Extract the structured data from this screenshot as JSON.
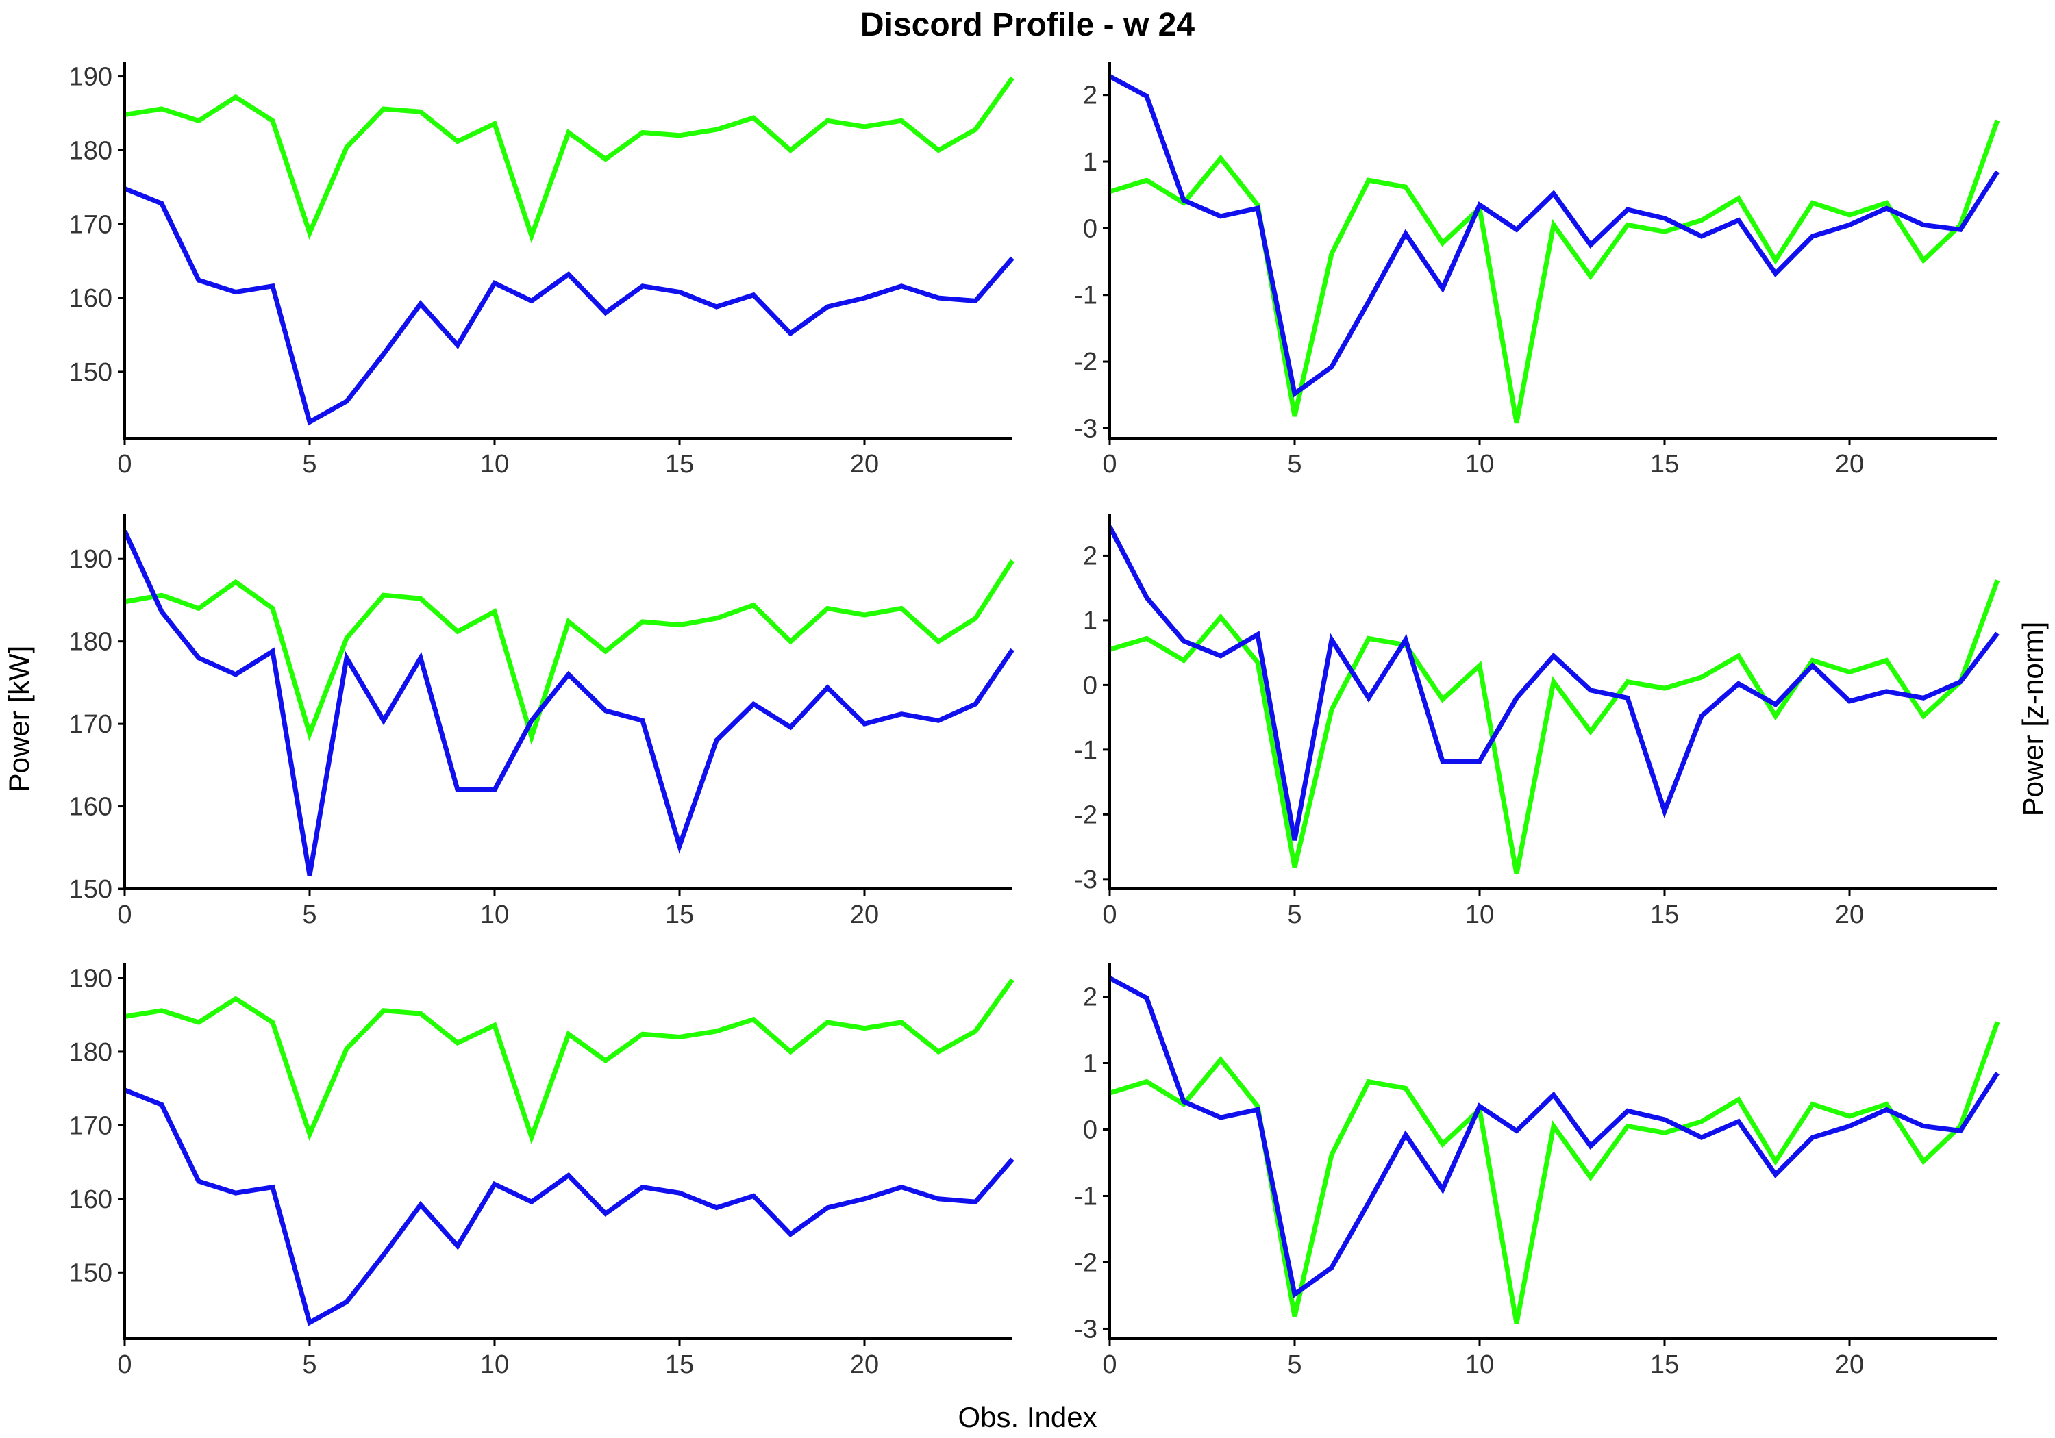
{
  "figure": {
    "title": "Discord Profile - w 24",
    "xlabel": "Obs. Index",
    "ylabel_left": "Power [kW]",
    "ylabel_right": "Power [z-norm]"
  },
  "colors": {
    "green": "#22ff00",
    "blue": "#1010ee"
  },
  "chart_data": [
    {
      "type": "line",
      "panel": "row1-left",
      "x": [
        0,
        1,
        2,
        3,
        4,
        5,
        6,
        7,
        8,
        9,
        10,
        11,
        12,
        13,
        14,
        15,
        16,
        17,
        18,
        19,
        20,
        21,
        22,
        23,
        24
      ],
      "xlim": [
        0,
        24
      ],
      "xticks": [
        0,
        5,
        10,
        15,
        20
      ],
      "ylim": [
        141,
        192
      ],
      "yticks": [
        150,
        160,
        170,
        180,
        190
      ],
      "series": [
        {
          "color": "#22ff00",
          "values": [
            184.8,
            185.6,
            184.0,
            187.2,
            184.0,
            168.8,
            180.4,
            185.6,
            185.2,
            181.2,
            183.6,
            168.4,
            182.4,
            178.8,
            182.4,
            182.0,
            182.8,
            184.4,
            180.0,
            184.0,
            183.2,
            184.0,
            180.0,
            182.8,
            189.8
          ]
        },
        {
          "color": "#1010ee",
          "values": [
            174.8,
            172.8,
            162.4,
            160.8,
            161.6,
            143.2,
            146.0,
            152.4,
            159.2,
            153.6,
            162.0,
            159.6,
            163.2,
            158.0,
            161.6,
            160.8,
            158.8,
            160.4,
            155.2,
            158.8,
            160.0,
            161.6,
            160.0,
            159.6,
            165.4
          ]
        }
      ]
    },
    {
      "type": "line",
      "panel": "row1-right",
      "x": [
        0,
        1,
        2,
        3,
        4,
        5,
        6,
        7,
        8,
        9,
        10,
        11,
        12,
        13,
        14,
        15,
        16,
        17,
        18,
        19,
        20,
        21,
        22,
        23,
        24
      ],
      "xlim": [
        0,
        24
      ],
      "xticks": [
        0,
        5,
        10,
        15,
        20
      ],
      "ylim": [
        -3.15,
        2.5
      ],
      "yticks": [
        -3,
        -2,
        -1,
        0,
        1,
        2
      ],
      "series": [
        {
          "color": "#22ff00",
          "values": [
            0.55,
            0.72,
            0.38,
            1.05,
            0.35,
            -2.82,
            -0.38,
            0.72,
            0.62,
            -0.22,
            0.3,
            -2.92,
            0.05,
            -0.72,
            0.05,
            -0.05,
            0.12,
            0.45,
            -0.48,
            0.38,
            0.2,
            0.38,
            -0.48,
            0.05,
            1.62
          ]
        },
        {
          "color": "#1010ee",
          "values": [
            2.28,
            1.98,
            0.42,
            0.18,
            0.3,
            -2.48,
            -2.08,
            -1.1,
            -0.08,
            -0.9,
            0.35,
            -0.02,
            0.52,
            -0.25,
            0.28,
            0.15,
            -0.12,
            0.12,
            -0.68,
            -0.12,
            0.05,
            0.3,
            0.05,
            -0.02,
            0.85
          ]
        }
      ]
    },
    {
      "type": "line",
      "panel": "row2-left",
      "x": [
        0,
        1,
        2,
        3,
        4,
        5,
        6,
        7,
        8,
        9,
        10,
        11,
        12,
        13,
        14,
        15,
        16,
        17,
        18,
        19,
        20,
        21,
        22,
        23,
        24
      ],
      "xlim": [
        0,
        24
      ],
      "xticks": [
        0,
        5,
        10,
        15,
        20
      ],
      "ylim": [
        150,
        195.5
      ],
      "yticks": [
        150,
        160,
        170,
        180,
        190
      ],
      "series": [
        {
          "color": "#22ff00",
          "values": [
            184.8,
            185.6,
            184.0,
            187.2,
            184.0,
            168.8,
            180.4,
            185.6,
            185.2,
            181.2,
            183.6,
            168.4,
            182.4,
            178.8,
            182.4,
            182.0,
            182.8,
            184.4,
            180.0,
            184.0,
            183.2,
            184.0,
            180.0,
            182.8,
            189.8
          ]
        },
        {
          "color": "#1010ee",
          "values": [
            193.4,
            183.6,
            178.0,
            176.0,
            178.8,
            151.6,
            178.0,
            170.4,
            178.0,
            162.0,
            162.0,
            170.4,
            176.0,
            171.6,
            170.4,
            155.2,
            168.0,
            172.4,
            169.6,
            174.4,
            170.0,
            171.2,
            170.4,
            172.4,
            179.0
          ]
        }
      ]
    },
    {
      "type": "line",
      "panel": "row2-right",
      "x": [
        0,
        1,
        2,
        3,
        4,
        5,
        6,
        7,
        8,
        9,
        10,
        11,
        12,
        13,
        14,
        15,
        16,
        17,
        18,
        19,
        20,
        21,
        22,
        23,
        24
      ],
      "xlim": [
        0,
        24
      ],
      "xticks": [
        0,
        5,
        10,
        15,
        20
      ],
      "ylim": [
        -3.15,
        2.65
      ],
      "yticks": [
        -3,
        -2,
        -1,
        0,
        1,
        2
      ],
      "series": [
        {
          "color": "#22ff00",
          "values": [
            0.55,
            0.72,
            0.38,
            1.05,
            0.35,
            -2.82,
            -0.38,
            0.72,
            0.62,
            -0.22,
            0.3,
            -2.92,
            0.05,
            -0.72,
            0.05,
            -0.05,
            0.12,
            0.45,
            -0.48,
            0.38,
            0.2,
            0.38,
            -0.48,
            0.05,
            1.62
          ]
        },
        {
          "color": "#1010ee",
          "values": [
            2.45,
            1.35,
            0.68,
            0.45,
            0.78,
            -2.4,
            0.7,
            -0.2,
            0.7,
            -1.18,
            -1.18,
            -0.2,
            0.45,
            -0.08,
            -0.2,
            -1.95,
            -0.48,
            0.02,
            -0.3,
            0.3,
            -0.25,
            -0.1,
            -0.2,
            0.05,
            0.8
          ]
        }
      ]
    },
    {
      "type": "line",
      "panel": "row3-left",
      "x": [
        0,
        1,
        2,
        3,
        4,
        5,
        6,
        7,
        8,
        9,
        10,
        11,
        12,
        13,
        14,
        15,
        16,
        17,
        18,
        19,
        20,
        21,
        22,
        23,
        24
      ],
      "xlim": [
        0,
        24
      ],
      "xticks": [
        0,
        5,
        10,
        15,
        20
      ],
      "ylim": [
        141,
        192
      ],
      "yticks": [
        150,
        160,
        170,
        180,
        190
      ],
      "series": [
        {
          "color": "#22ff00",
          "values": [
            184.8,
            185.6,
            184.0,
            187.2,
            184.0,
            168.8,
            180.4,
            185.6,
            185.2,
            181.2,
            183.6,
            168.4,
            182.4,
            178.8,
            182.4,
            182.0,
            182.8,
            184.4,
            180.0,
            184.0,
            183.2,
            184.0,
            180.0,
            182.8,
            189.8
          ]
        },
        {
          "color": "#1010ee",
          "values": [
            174.8,
            172.8,
            162.4,
            160.8,
            161.6,
            143.2,
            146.0,
            152.4,
            159.2,
            153.6,
            162.0,
            159.6,
            163.2,
            158.0,
            161.6,
            160.8,
            158.8,
            160.4,
            155.2,
            158.8,
            160.0,
            161.6,
            160.0,
            159.6,
            165.4
          ]
        }
      ]
    },
    {
      "type": "line",
      "panel": "row3-right",
      "x": [
        0,
        1,
        2,
        3,
        4,
        5,
        6,
        7,
        8,
        9,
        10,
        11,
        12,
        13,
        14,
        15,
        16,
        17,
        18,
        19,
        20,
        21,
        22,
        23,
        24
      ],
      "xlim": [
        0,
        24
      ],
      "xticks": [
        0,
        5,
        10,
        15,
        20
      ],
      "ylim": [
        -3.15,
        2.5
      ],
      "yticks": [
        -3,
        -2,
        -1,
        0,
        1,
        2
      ],
      "series": [
        {
          "color": "#22ff00",
          "values": [
            0.55,
            0.72,
            0.38,
            1.05,
            0.35,
            -2.82,
            -0.38,
            0.72,
            0.62,
            -0.22,
            0.3,
            -2.92,
            0.05,
            -0.72,
            0.05,
            -0.05,
            0.12,
            0.45,
            -0.48,
            0.38,
            0.2,
            0.38,
            -0.48,
            0.05,
            1.62
          ]
        },
        {
          "color": "#1010ee",
          "values": [
            2.28,
            1.98,
            0.42,
            0.18,
            0.3,
            -2.48,
            -2.08,
            -1.1,
            -0.08,
            -0.9,
            0.35,
            -0.02,
            0.52,
            -0.25,
            0.28,
            0.15,
            -0.12,
            0.12,
            -0.68,
            -0.12,
            0.05,
            0.3,
            0.05,
            -0.02,
            0.85
          ]
        }
      ]
    }
  ]
}
